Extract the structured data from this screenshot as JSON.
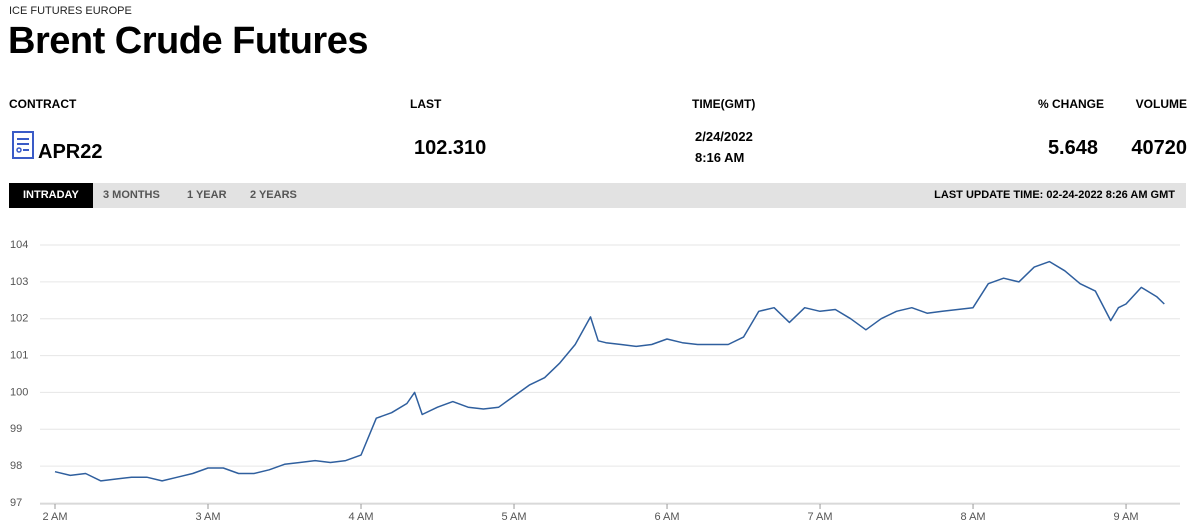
{
  "header": {
    "exchange": "ICE FUTURES EUROPE",
    "title": "Brent Crude Futures"
  },
  "quote": {
    "columns": [
      "CONTRACT",
      "LAST",
      "TIME(GMT)",
      "% CHANGE",
      "VOLUME"
    ],
    "contract": "APR22",
    "last": "102.310",
    "time_date": "2/24/2022",
    "time_clock": "8:16 AM",
    "change": "5.648",
    "volume": "40720"
  },
  "tabs": [
    "INTRADAY",
    "3 MONTHS",
    "1 YEAR",
    "2 YEARS"
  ],
  "last_update": "LAST UPDATE TIME: 02-24-2022 8:26 AM GMT",
  "chart_data": {
    "type": "line",
    "color": "#2f5f9e",
    "grid": true,
    "x": [
      2.0,
      2.1,
      2.2,
      2.3,
      2.4,
      2.5,
      2.6,
      2.7,
      2.8,
      2.9,
      3.0,
      3.1,
      3.2,
      3.3,
      3.4,
      3.5,
      3.6,
      3.7,
      3.8,
      3.9,
      4.0,
      4.1,
      4.2,
      4.3,
      4.35,
      4.4,
      4.5,
      4.6,
      4.7,
      4.8,
      4.9,
      5.0,
      5.1,
      5.2,
      5.3,
      5.4,
      5.5,
      5.55,
      5.6,
      5.7,
      5.8,
      5.9,
      6.0,
      6.1,
      6.2,
      6.3,
      6.4,
      6.5,
      6.6,
      6.7,
      6.8,
      6.9,
      7.0,
      7.1,
      7.2,
      7.3,
      7.4,
      7.5,
      7.6,
      7.7,
      7.8,
      7.9,
      8.0,
      8.1,
      8.2,
      8.3,
      8.4,
      8.5,
      8.6,
      8.7,
      8.8,
      8.9,
      8.95,
      9.0,
      9.1,
      9.2,
      9.25
    ],
    "values": [
      97.85,
      97.75,
      97.8,
      97.6,
      97.65,
      97.7,
      97.7,
      97.6,
      97.7,
      97.8,
      97.95,
      97.95,
      97.8,
      97.8,
      97.9,
      98.05,
      98.1,
      98.15,
      98.1,
      98.15,
      98.3,
      99.3,
      99.45,
      99.7,
      100.0,
      99.4,
      99.6,
      99.75,
      99.6,
      99.55,
      99.6,
      99.9,
      100.2,
      100.4,
      100.8,
      101.3,
      102.05,
      101.4,
      101.35,
      101.3,
      101.25,
      101.3,
      101.45,
      101.35,
      101.3,
      101.3,
      101.3,
      101.5,
      102.2,
      102.3,
      101.9,
      102.3,
      102.2,
      102.25,
      102.0,
      101.7,
      102.0,
      102.2,
      102.3,
      102.15,
      102.2,
      102.25,
      102.3,
      102.95,
      103.1,
      103.0,
      103.4,
      103.55,
      103.3,
      102.95,
      102.75,
      101.95,
      102.3,
      102.4,
      102.85,
      102.6,
      102.4
    ],
    "xlim": [
      1.9,
      9.35
    ],
    "xticks": [
      {
        "value": 2,
        "label": "2 AM"
      },
      {
        "value": 3,
        "label": "3 AM"
      },
      {
        "value": 4,
        "label": "4 AM"
      },
      {
        "value": 5,
        "label": "5 AM"
      },
      {
        "value": 6,
        "label": "6 AM"
      },
      {
        "value": 7,
        "label": "7 AM"
      },
      {
        "value": 8,
        "label": "8 AM"
      },
      {
        "value": 9,
        "label": "9 AM"
      }
    ],
    "ylim": [
      97,
      104
    ],
    "yticks": [
      97,
      98,
      99,
      100,
      101,
      102,
      103,
      104
    ]
  }
}
